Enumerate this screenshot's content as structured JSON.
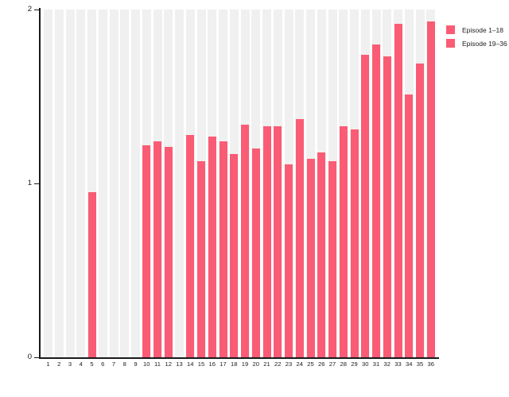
{
  "chart_data": {
    "type": "bar",
    "title": "",
    "xlabel": "",
    "ylabel": "",
    "ylim": [
      0,
      2
    ],
    "yticks": [
      "0",
      "1",
      "2"
    ],
    "grid": "light-gray full-height background stripe behind every bar slot",
    "legend_position": "top-right",
    "categories": [
      "1",
      "2",
      "3",
      "4",
      "5",
      "6",
      "7",
      "8",
      "9",
      "10",
      "11",
      "12",
      "13",
      "14",
      "15",
      "16",
      "17",
      "18",
      "19",
      "20",
      "21",
      "22",
      "23",
      "24",
      "25",
      "26",
      "27",
      "28",
      "29",
      "30",
      "31",
      "32",
      "33",
      "34",
      "35",
      "36"
    ],
    "series": [
      {
        "name": "Episode 1–18",
        "color": "#fa5c75",
        "values": [
          0,
          0,
          0,
          0,
          0.95,
          0,
          0,
          0,
          0,
          1.22,
          1.24,
          1.21,
          0,
          1.28,
          1.13,
          1.27,
          1.24,
          1.17,
          0,
          0,
          0,
          0,
          0,
          0,
          0,
          0,
          0,
          0,
          0,
          0,
          0,
          0,
          0,
          0,
          0,
          0
        ]
      },
      {
        "name": "Episode 19–36",
        "color": "#fa5c75",
        "values": [
          0,
          0,
          0,
          0,
          0,
          0,
          0,
          0,
          0,
          0,
          0,
          0,
          0,
          0,
          0,
          0,
          0,
          0,
          1.34,
          1.2,
          1.33,
          1.33,
          1.11,
          1.37,
          1.14,
          1.18,
          1.13,
          1.33,
          1.31,
          1.74,
          1.8,
          1.73,
          1.92,
          1.51,
          1.69,
          1.93
        ]
      }
    ]
  },
  "style": {
    "bar_color": "#fa5c75",
    "stripe_color": "#f0f0f0",
    "axis_color": "#1a1a1a"
  }
}
